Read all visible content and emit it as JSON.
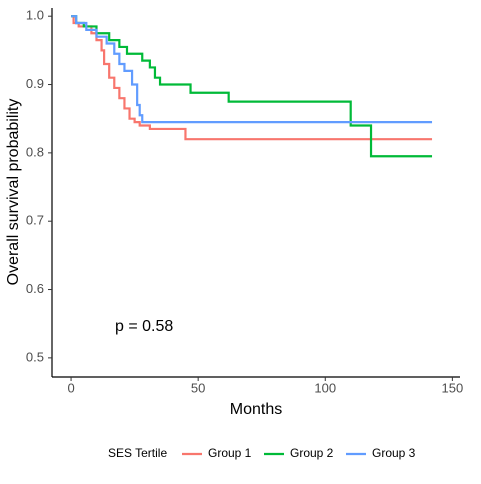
{
  "chart_data": {
    "type": "step",
    "x_label": "Months",
    "y_label": "Overall survival probability",
    "annotation": "p = 0.58",
    "legend_title": "SES Tertile",
    "legend": "bottom",
    "grid": false,
    "xlim": [
      -7.5,
      153
    ],
    "ylim": [
      0.472,
      1.012
    ],
    "xticks": [
      0,
      50,
      100,
      150
    ],
    "yticks": [
      0.5,
      0.6,
      0.7,
      0.8,
      0.9,
      {
        "value": 1.0,
        "label": "1.0"
      }
    ],
    "series": [
      {
        "name": "Group 1",
        "color": "#F8766D",
        "x": [
          0,
          1,
          3,
          8,
          10,
          12,
          13,
          15,
          17,
          19,
          21,
          23,
          25,
          27,
          31,
          45,
          142
        ],
        "values": [
          1.0,
          0.99,
          0.985,
          0.975,
          0.965,
          0.95,
          0.93,
          0.91,
          0.895,
          0.88,
          0.865,
          0.85,
          0.845,
          0.84,
          0.835,
          0.82,
          0.82
        ]
      },
      {
        "name": "Group 2",
        "color": "#00BA38",
        "x": [
          0,
          2,
          5,
          10,
          15,
          19,
          22,
          28,
          31,
          33,
          35,
          47,
          62,
          110,
          118,
          142
        ],
        "values": [
          1.0,
          0.99,
          0.985,
          0.975,
          0.965,
          0.955,
          0.945,
          0.935,
          0.925,
          0.91,
          0.9,
          0.888,
          0.875,
          0.84,
          0.795,
          0.795
        ]
      },
      {
        "name": "Group 3",
        "color": "#619CFF",
        "x": [
          0,
          2,
          6,
          10,
          14,
          17,
          19,
          21,
          24,
          26,
          27,
          28,
          142
        ],
        "values": [
          1.0,
          0.99,
          0.98,
          0.97,
          0.96,
          0.945,
          0.93,
          0.92,
          0.9,
          0.87,
          0.855,
          0.845,
          0.845
        ]
      }
    ]
  }
}
